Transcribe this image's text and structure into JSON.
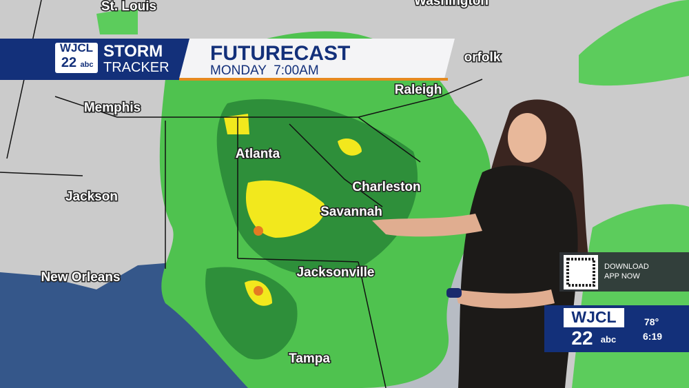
{
  "banner": {
    "logo": {
      "call": "WJCL",
      "channel": "22",
      "network": "abc"
    },
    "brand_top": "STORM",
    "brand_bottom": "TRACKER",
    "title": "FUTURECAST",
    "subtitle": "MONDAY  7:00AM"
  },
  "map_labels": [
    "St. Louis",
    "Washington",
    "orfolk",
    "Raleigh",
    "Memphis",
    "Atlanta",
    "Charleston",
    "Jackson",
    "Savannah",
    "New Orleans",
    "Jacksonville",
    "Tampa"
  ],
  "app_promo": {
    "line1": "DOWNLOAD",
    "line2": "APP NOW"
  },
  "station_bug": {
    "call": "WJCL",
    "channel": "22",
    "network": "abc",
    "temperature": "78°",
    "time": "6:19"
  }
}
